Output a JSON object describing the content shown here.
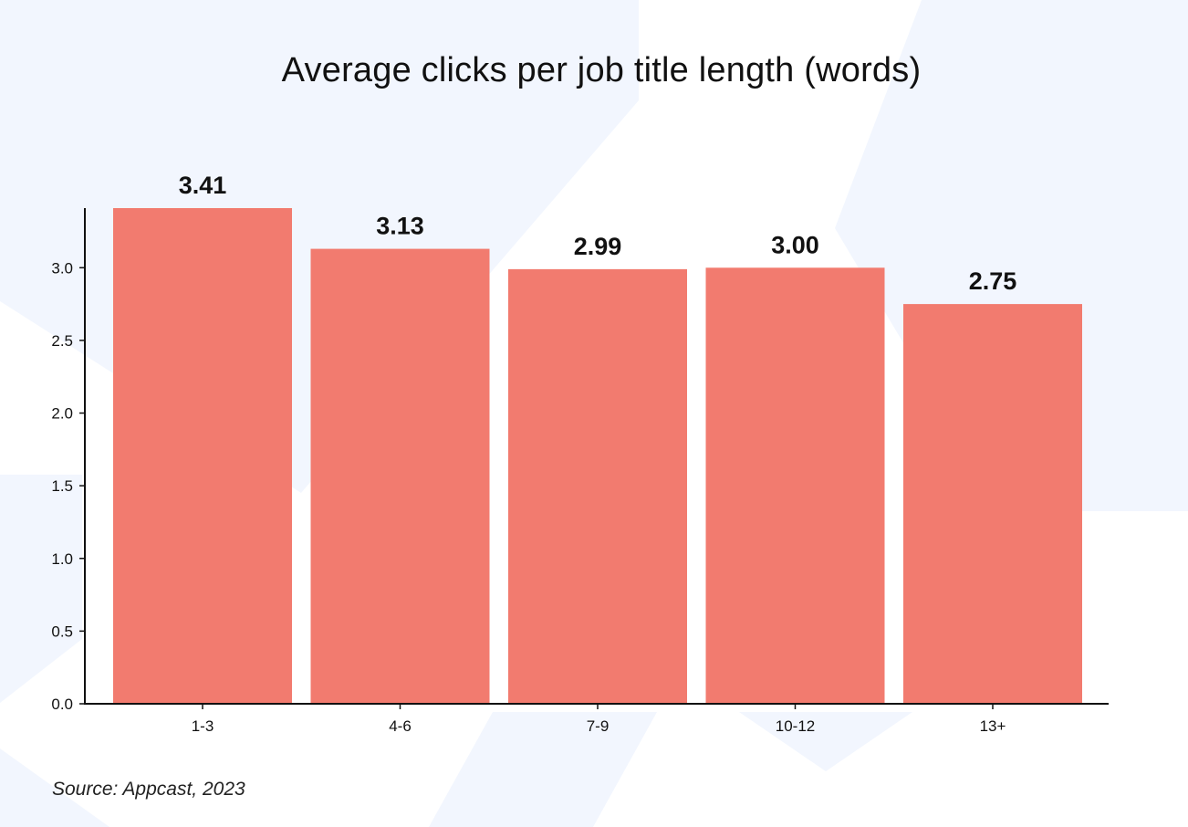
{
  "title": "Average clicks per job title length (words)",
  "source": "Source: Appcast, 2023",
  "colors": {
    "bar": "#F27B6F",
    "axis": "#111111",
    "background_shapes": "#F2F6FE"
  },
  "chart_data": {
    "type": "bar",
    "title": "Average clicks per job title length (words)",
    "xlabel": "",
    "ylabel": "",
    "categories": [
      "1-3",
      "4-6",
      "7-9",
      "10-12",
      "13+"
    ],
    "values": [
      3.41,
      3.13,
      2.99,
      3.0,
      2.75
    ],
    "value_labels": [
      "3.41",
      "3.13",
      "2.99",
      "3.00",
      "2.75"
    ],
    "yticks": [
      0.0,
      0.5,
      1.0,
      1.5,
      2.0,
      2.5,
      3.0
    ],
    "ytick_labels": [
      "0.0",
      "0.5",
      "1.0",
      "1.5",
      "2.0",
      "2.5",
      "3.0"
    ],
    "ylim": [
      0,
      3.41
    ],
    "grid": false,
    "legend": "none"
  }
}
